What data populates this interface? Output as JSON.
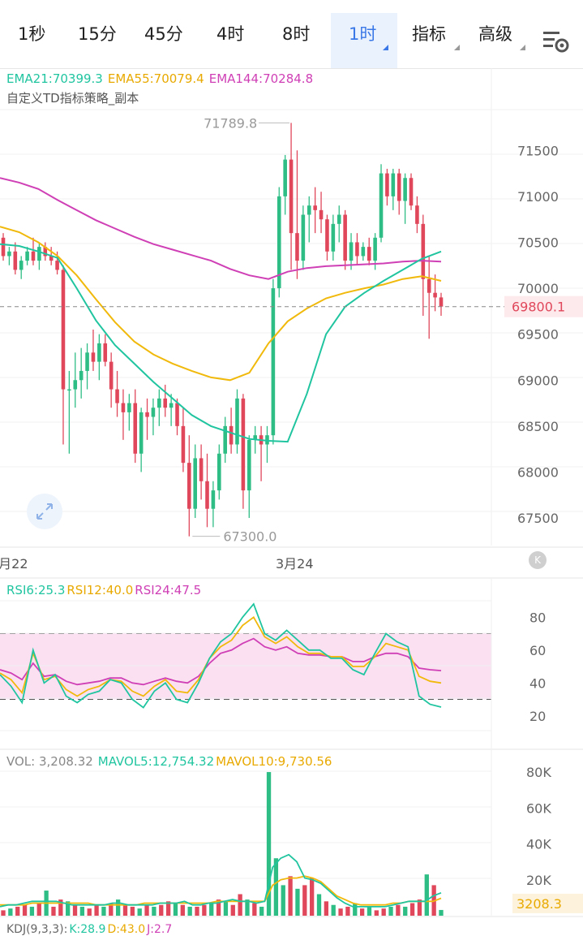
{
  "tabs": [
    {
      "label": "1秒",
      "active": false,
      "has_menu": false
    },
    {
      "label": "15分",
      "active": false,
      "has_menu": false
    },
    {
      "label": "45分",
      "active": false,
      "has_menu": false
    },
    {
      "label": "4时",
      "active": false,
      "has_menu": false
    },
    {
      "label": "8时",
      "active": false,
      "has_menu": false
    },
    {
      "label": "1时",
      "active": true,
      "has_menu": true
    },
    {
      "label": "指标",
      "active": false,
      "has_menu": true
    },
    {
      "label": "高级",
      "active": false,
      "has_menu": true
    }
  ],
  "colors": {
    "up": "#2ebd85",
    "down": "#e0475b",
    "ema21": "#20c5a0",
    "ema55": "#f0b90b",
    "ema144": "#cf3fb5",
    "rsi_band": "#fbe0f2",
    "active_tab": "#3b78e7"
  },
  "main_legend": {
    "ema21": "EMA21:70399.3",
    "ema55": "EMA55:70079.4",
    "ema144": "EMA144:70284.8",
    "strategy": "自定义TD指标策略_副本"
  },
  "price_axis": {
    "ticks": [
      "71500",
      "71000",
      "70500",
      "70000",
      "69500",
      "69000",
      "68500",
      "68000",
      "67500"
    ]
  },
  "current_price": "69800.1",
  "high_label": "71789.8",
  "low_label": "67300.0",
  "date_labels": [
    "3月22",
    "3月24"
  ],
  "rsi_legend": {
    "rsi6": "RSI6:25.3",
    "rsi12": "RSI12:40.0",
    "rsi24": "RSI24:47.5"
  },
  "rsi_axis": {
    "ticks": [
      "80",
      "60",
      "40",
      "20"
    ]
  },
  "vol_legend": {
    "vol": "VOL: 3,208.32",
    "mavol5": "MAVOL5:12,754.32",
    "mavol10": "MAVOL10:9,730.56"
  },
  "vol_axis": {
    "ticks": [
      "80K",
      "60K",
      "40K",
      "20K"
    ]
  },
  "vol_current": "3208.3",
  "kdj_legend": {
    "label": "KDJ(9,3,3):",
    "k": "K:28.9",
    "d": "D:43.0",
    "j": "J:2.7"
  },
  "chart_data": {
    "type": "candlestick",
    "timeframe": "1h",
    "price_range": [
      67200,
      71900
    ],
    "candles": [
      [
        70550,
        70600,
        70300,
        70350
      ],
      [
        70350,
        70450,
        70250,
        70400
      ],
      [
        70400,
        70500,
        70150,
        70200
      ],
      [
        70200,
        70350,
        70100,
        70300
      ],
      [
        70300,
        70450,
        70250,
        70400
      ],
      [
        70400,
        70550,
        70250,
        70300
      ],
      [
        70300,
        70500,
        70200,
        70450
      ],
      [
        70450,
        70500,
        70300,
        70350
      ],
      [
        70350,
        70450,
        70250,
        70300
      ],
      [
        70300,
        70400,
        70150,
        70200
      ],
      [
        70200,
        70250,
        68300,
        68900
      ],
      [
        68900,
        69100,
        68200,
        68900
      ],
      [
        68900,
        69300,
        68700,
        69000
      ],
      [
        69000,
        69350,
        68800,
        69100
      ],
      [
        69100,
        69400,
        68900,
        69300
      ],
      [
        69300,
        69550,
        69100,
        69200
      ],
      [
        69200,
        69500,
        69000,
        69400
      ],
      [
        69400,
        69500,
        69150,
        69200
      ],
      [
        69200,
        69300,
        68700,
        68900
      ],
      [
        68900,
        69100,
        68600,
        68750
      ],
      [
        68750,
        68900,
        68350,
        68650
      ],
      [
        68650,
        68850,
        68450,
        68750
      ],
      [
        68750,
        68900,
        68100,
        68200
      ],
      [
        68200,
        68700,
        68000,
        68650
      ],
      [
        68650,
        68800,
        68350,
        68600
      ],
      [
        68600,
        68800,
        68400,
        68700
      ],
      [
        68700,
        68900,
        68500,
        68800
      ],
      [
        68800,
        68950,
        68600,
        68700
      ],
      [
        68700,
        68850,
        68500,
        68750
      ],
      [
        68750,
        68800,
        68400,
        68500
      ],
      [
        68500,
        68700,
        68000,
        68100
      ],
      [
        68100,
        68400,
        67300,
        67600
      ],
      [
        67600,
        68300,
        67500,
        68150
      ],
      [
        68150,
        68300,
        67700,
        67900
      ],
      [
        67900,
        68200,
        67400,
        67600
      ],
      [
        67600,
        67900,
        67400,
        67800
      ],
      [
        67800,
        68300,
        67700,
        68200
      ],
      [
        68200,
        68600,
        68100,
        68500
      ],
      [
        68500,
        68700,
        68200,
        68300
      ],
      [
        68300,
        68900,
        68200,
        68800
      ],
      [
        68800,
        68850,
        67600,
        67800
      ],
      [
        67800,
        68400,
        67500,
        68350
      ],
      [
        68350,
        68500,
        68200,
        68400
      ],
      [
        68400,
        68500,
        67900,
        68300
      ],
      [
        68300,
        68500,
        68100,
        68400
      ],
      [
        68400,
        70100,
        68300,
        70000
      ],
      [
        70000,
        71100,
        69900,
        71000
      ],
      [
        71000,
        71450,
        70800,
        71400
      ],
      [
        71400,
        71800,
        70200,
        70600
      ],
      [
        70600,
        71500,
        70100,
        70300
      ],
      [
        70300,
        70900,
        70200,
        70800
      ],
      [
        70800,
        71000,
        70500,
        70900
      ],
      [
        70900,
        71100,
        70600,
        70850
      ],
      [
        70850,
        71050,
        70600,
        70750
      ],
      [
        70750,
        70800,
        70300,
        70400
      ],
      [
        70400,
        70800,
        70300,
        70700
      ],
      [
        70700,
        70900,
        70500,
        70800
      ],
      [
        70800,
        70850,
        70200,
        70300
      ],
      [
        70300,
        70600,
        70200,
        70500
      ],
      [
        70500,
        70600,
        70250,
        70350
      ],
      [
        70350,
        70500,
        70300,
        70450
      ],
      [
        70450,
        70550,
        70250,
        70300
      ],
      [
        70300,
        70600,
        70200,
        70550
      ],
      [
        70550,
        71350,
        70500,
        71250
      ],
      [
        71250,
        71300,
        70900,
        71000
      ],
      [
        71000,
        71300,
        70850,
        71250
      ],
      [
        71250,
        71300,
        70800,
        70950
      ],
      [
        70950,
        71250,
        70700,
        71200
      ],
      [
        71200,
        71250,
        70850,
        70900
      ],
      [
        70900,
        71000,
        70600,
        70700
      ],
      [
        70700,
        70800,
        69700,
        70100
      ],
      [
        70100,
        70350,
        69450,
        69950
      ],
      [
        69950,
        70150,
        69750,
        69900
      ],
      [
        69900,
        69950,
        69700,
        69800
      ]
    ],
    "ema21": [
      70480,
      70460,
      70400,
      70330,
      70000,
      69650,
      69380,
      69180,
      68980,
      68800,
      68620,
      68500,
      68430,
      68360,
      68340,
      68330,
      68850,
      69500,
      69800,
      69950,
      70080,
      70200,
      70320,
      70400
    ],
    "ema55": [
      70670,
      70610,
      70500,
      70350,
      70140,
      69880,
      69630,
      69420,
      69280,
      69180,
      69100,
      69030,
      69000,
      69080,
      69400,
      69640,
      69780,
      69890,
      69950,
      70000,
      70040,
      70100,
      70130,
      70080
    ],
    "ema144": [
      71200,
      71150,
      71080,
      70960,
      70850,
      70740,
      70650,
      70560,
      70480,
      70420,
      70360,
      70300,
      70210,
      70140,
      70100,
      70180,
      70220,
      70240,
      70250,
      70260,
      70270,
      70290,
      70300,
      70290
    ],
    "rsi_range": [
      10,
      90
    ],
    "rsi_levels": [
      30,
      70
    ],
    "rsi6": [
      45,
      38,
      28,
      60,
      40,
      45,
      32,
      28,
      33,
      35,
      42,
      40,
      30,
      25,
      35,
      40,
      30,
      28,
      40,
      55,
      65,
      70,
      80,
      88,
      70,
      66,
      72,
      66,
      60,
      60,
      55,
      55,
      48,
      45,
      58,
      70,
      65,
      62,
      32,
      27,
      25.3
    ],
    "rsi12": [
      46,
      42,
      34,
      58,
      42,
      44,
      36,
      32,
      36,
      38,
      42,
      41,
      35,
      32,
      38,
      42,
      35,
      34,
      42,
      55,
      62,
      66,
      75,
      80,
      68,
      64,
      68,
      62,
      58,
      58,
      56,
      56,
      50,
      50,
      56,
      64,
      62,
      60,
      44,
      41,
      40.0
    ],
    "rsi24": [
      48,
      46,
      42,
      52,
      44,
      45,
      41,
      39,
      40,
      41,
      43,
      43,
      40,
      39,
      41,
      43,
      41,
      40,
      44,
      52,
      58,
      60,
      64,
      67,
      62,
      60,
      62,
      58,
      57,
      57,
      56,
      56,
      53,
      53,
      56,
      58,
      58,
      56,
      49,
      48,
      47.5
    ],
    "vol_range": [
      0,
      85000
    ],
    "volumes": [
      3,
      4,
      5,
      6,
      5,
      7,
      14,
      5,
      9,
      8,
      6,
      5,
      4,
      6,
      5,
      7,
      9,
      6,
      5,
      4,
      6,
      5,
      6,
      8,
      7,
      6,
      5,
      5,
      6,
      7,
      9,
      8,
      6,
      12,
      9,
      7,
      5,
      80,
      32,
      17,
      22,
      15,
      17,
      21,
      12,
      8,
      6,
      4,
      5,
      7,
      4,
      5,
      3,
      4,
      5,
      6,
      5,
      7,
      9,
      23,
      17,
      3.2
    ],
    "mavol5": [
      5,
      6,
      6,
      7,
      8,
      8,
      8,
      8,
      7,
      6,
      6,
      6,
      6,
      6,
      7,
      7,
      6,
      6,
      6,
      6,
      7,
      7,
      7,
      8,
      6,
      6,
      7,
      7,
      8,
      9,
      8,
      8,
      7,
      8,
      27,
      32,
      34,
      30,
      21,
      20,
      18,
      14,
      10,
      7,
      5,
      5,
      5,
      5,
      5,
      6,
      7,
      8,
      8,
      8,
      11,
      12.75
    ],
    "mavol10": [
      6,
      6,
      6,
      6,
      7,
      7,
      7,
      7,
      7,
      7,
      7,
      7,
      6,
      6,
      6,
      6,
      6,
      6,
      7,
      7,
      7,
      7,
      7,
      7,
      7,
      7,
      7,
      8,
      8,
      8,
      8,
      8,
      8,
      8,
      17,
      20,
      21,
      21,
      22,
      21,
      19,
      15,
      11,
      9,
      7,
      6,
      6,
      6,
      6,
      7,
      7,
      8,
      8,
      8,
      8,
      9.73
    ]
  }
}
